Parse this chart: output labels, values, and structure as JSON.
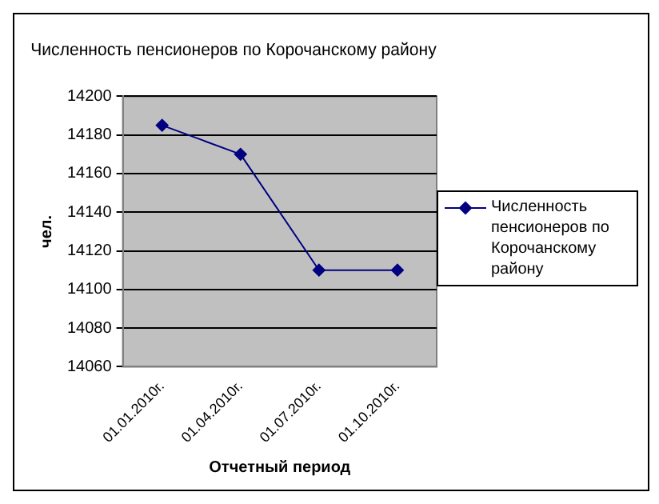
{
  "chart_data": {
    "type": "line",
    "title": "Численность пенсионеров по Корочанскому району",
    "xlabel": "Отчетный период",
    "ylabel": "чел.",
    "categories": [
      "01.01.2010г.",
      "01.04.2010г.",
      "01.07.2010г.",
      "01.10.2010г."
    ],
    "series": [
      {
        "name": "Численность пенсионеров по Корочанскому району",
        "color": "#000080",
        "values": [
          14185,
          14170,
          14110,
          14110
        ]
      }
    ],
    "ylim": [
      14060,
      14200
    ],
    "yticks": [
      14060,
      14080,
      14100,
      14120,
      14140,
      14160,
      14180,
      14200
    ],
    "grid": "y",
    "legend": "right",
    "marker": "diamond",
    "line_style": "solid"
  }
}
